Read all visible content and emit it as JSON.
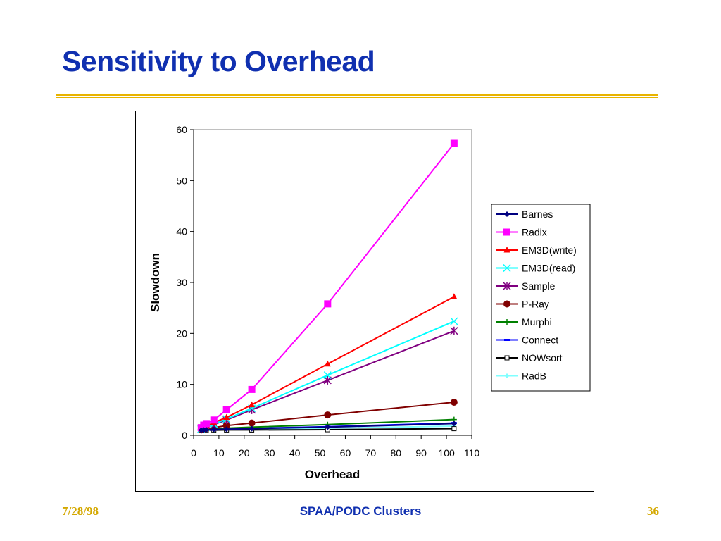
{
  "slide": {
    "title": "Sensitivity to Overhead",
    "footer_left": "7/28/98",
    "footer_center": "SPAA/PODC Clusters",
    "footer_right": "36",
    "colors": {
      "title": "#1030b0",
      "rule": "#e8b400",
      "footer_date": "#d4a800"
    }
  },
  "chart_data": {
    "type": "line",
    "title": "",
    "xlabel": "Overhead",
    "ylabel": "Slowdown",
    "xlim": [
      0,
      110
    ],
    "ylim": [
      0,
      60
    ],
    "xticks": [
      0,
      10,
      20,
      30,
      40,
      50,
      60,
      70,
      80,
      90,
      100,
      110
    ],
    "yticks": [
      0,
      10,
      20,
      30,
      40,
      50,
      60
    ],
    "grid": false,
    "legend_position": "right",
    "series": [
      {
        "name": "Barnes",
        "color": "#000080",
        "marker": "diamond",
        "x": [
          3,
          4,
          5,
          8,
          13,
          23,
          53,
          103
        ],
        "y": [
          1.0,
          1.05,
          1.1,
          1.15,
          1.2,
          1.3,
          1.6,
          2.3
        ]
      },
      {
        "name": "Radix",
        "color": "#ff00ff",
        "marker": "square",
        "x": [
          3,
          4,
          5,
          8,
          13,
          23,
          53,
          103
        ],
        "y": [
          1.5,
          2.0,
          2.3,
          3.0,
          5.0,
          9.0,
          25.8,
          57.3
        ]
      },
      {
        "name": "EM3D(write)",
        "color": "#ff0000",
        "marker": "triangle",
        "x": [
          3,
          4,
          5,
          8,
          13,
          23,
          53,
          103
        ],
        "y": [
          1.3,
          1.5,
          1.8,
          2.5,
          3.5,
          6.0,
          14.0,
          27.2
        ]
      },
      {
        "name": "EM3D(read)",
        "color": "#00ffff",
        "marker": "x",
        "x": [
          3,
          4,
          5,
          8,
          13,
          23,
          53,
          103
        ],
        "y": [
          1.2,
          1.4,
          1.6,
          2.2,
          3.2,
          5.3,
          11.8,
          22.4
        ]
      },
      {
        "name": "Sample",
        "color": "#800080",
        "marker": "star",
        "x": [
          3,
          4,
          5,
          8,
          13,
          23,
          53,
          103
        ],
        "y": [
          1.2,
          1.4,
          1.6,
          2.1,
          3.0,
          5.0,
          10.8,
          20.5
        ]
      },
      {
        "name": "P-Ray",
        "color": "#800000",
        "marker": "circle",
        "x": [
          3,
          4,
          5,
          8,
          13,
          23,
          53,
          103
        ],
        "y": [
          1.1,
          1.2,
          1.3,
          1.5,
          1.9,
          2.4,
          4.0,
          6.5
        ]
      },
      {
        "name": "Murphi",
        "color": "#008000",
        "marker": "plus",
        "x": [
          3,
          4,
          5,
          8,
          13,
          23,
          53,
          103
        ],
        "y": [
          1.0,
          1.05,
          1.1,
          1.2,
          1.4,
          1.6,
          2.1,
          3.1
        ]
      },
      {
        "name": "Connect",
        "color": "#0000ff",
        "marker": "dash",
        "x": [
          3,
          4,
          5,
          8,
          13,
          23,
          53,
          103
        ],
        "y": [
          1.0,
          1.02,
          1.05,
          1.1,
          1.2,
          1.35,
          1.7,
          2.4
        ]
      },
      {
        "name": "NOWsort",
        "color": "#000000",
        "marker": "hollow-square",
        "x": [
          3,
          4,
          5,
          8,
          13,
          23,
          53,
          103
        ],
        "y": [
          1.0,
          1.0,
          1.0,
          1.0,
          1.05,
          1.05,
          1.1,
          1.3
        ]
      },
      {
        "name": "RadB",
        "color": "#80ffff",
        "marker": "small-diamond",
        "x": [
          3,
          4,
          5,
          8,
          13,
          23,
          53,
          103
        ],
        "y": [
          1.0,
          1.02,
          1.05,
          1.1,
          1.15,
          1.2,
          1.4,
          1.8
        ]
      }
    ]
  }
}
